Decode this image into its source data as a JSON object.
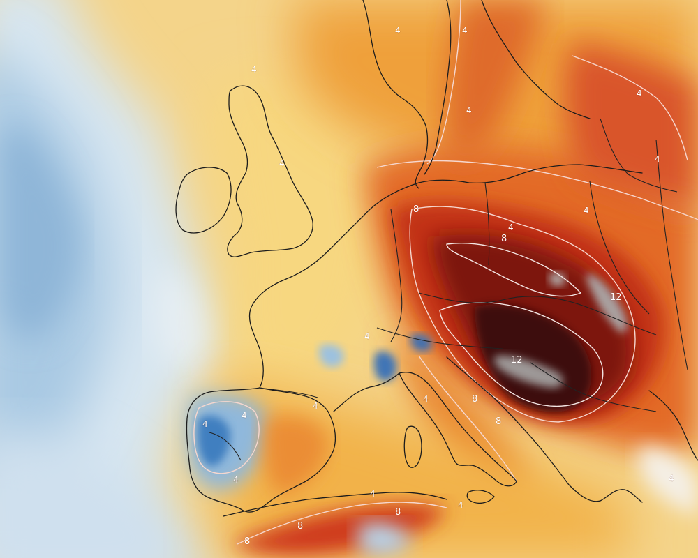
{
  "map": {
    "type": "temperature anomaly field",
    "colors": {
      "cool_dark": "#2e6fb3",
      "cool": "#9ec3e1",
      "cool_light": "#dce9f3",
      "neutral": "#f7f1e3",
      "warm_light": "#f5d98a",
      "warm": "#f2b33a",
      "warm_orange": "#ec8a2a",
      "hot": "#e25a23",
      "very_hot": "#c12d18",
      "extreme": "#7a1410",
      "extreme_dark": "#3a0a0a",
      "peak_grey": "#9a9a9a",
      "contour_line": "#f6d7cf",
      "coastline": "#1c1c1c"
    },
    "contour_levels": [
      "4",
      "8",
      "12"
    ],
    "labels": [
      {
        "id": "scand-north",
        "text": "4"
      },
      {
        "id": "baltic-a",
        "text": "4"
      },
      {
        "id": "baltic-b",
        "text": "4"
      },
      {
        "id": "scotland",
        "text": "4"
      },
      {
        "id": "england",
        "text": "4"
      },
      {
        "id": "poland-a",
        "text": "4"
      },
      {
        "id": "russia-a",
        "text": "4"
      },
      {
        "id": "russia-b",
        "text": "4"
      },
      {
        "id": "germany-8",
        "text": "8"
      },
      {
        "id": "czech-8",
        "text": "8"
      },
      {
        "id": "czech-4",
        "text": "4"
      },
      {
        "id": "hungary-12",
        "text": "12"
      },
      {
        "id": "balkan-12",
        "text": "12"
      },
      {
        "id": "alps-4",
        "text": "4"
      },
      {
        "id": "iberia-4a",
        "text": "4"
      },
      {
        "id": "iberia-4b",
        "text": "4"
      },
      {
        "id": "iberia-4c",
        "text": "4"
      },
      {
        "id": "iberia-4d",
        "text": "4"
      },
      {
        "id": "italy-4",
        "text": "4"
      },
      {
        "id": "italy-8",
        "text": "8"
      },
      {
        "id": "balkan-8",
        "text": "8"
      },
      {
        "id": "africa-4a",
        "text": "4"
      },
      {
        "id": "africa-8a",
        "text": "8"
      },
      {
        "id": "africa-8b",
        "text": "8"
      },
      {
        "id": "africa-8c",
        "text": "8"
      },
      {
        "id": "africa-4b",
        "text": "4"
      },
      {
        "id": "greece-4",
        "text": "4"
      }
    ]
  }
}
